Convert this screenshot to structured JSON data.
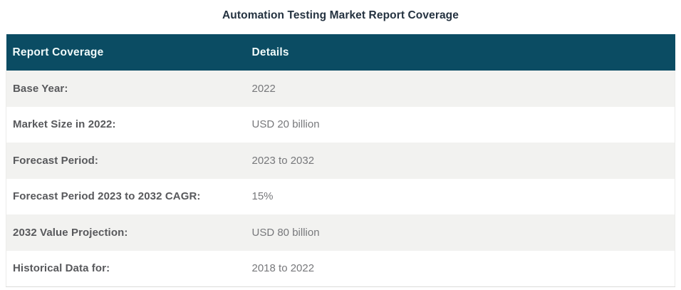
{
  "page": {
    "title": "Automation Testing Market Report Coverage"
  },
  "table": {
    "columns": [
      {
        "label": "Report Coverage"
      },
      {
        "label": "Details"
      }
    ],
    "rows": [
      {
        "label": "Base Year:",
        "value": "2022"
      },
      {
        "label": "Market Size in 2022:",
        "value": "USD 20 billion"
      },
      {
        "label": "Forecast Period:",
        "value": "2023 to 2032"
      },
      {
        "label": "Forecast Period 2023 to 2032 CAGR:",
        "value": "15%"
      },
      {
        "label": "2032 Value Projection:",
        "value": "USD 80 billion"
      },
      {
        "label": "Historical Data for:",
        "value": "2018 to 2022"
      }
    ],
    "colors": {
      "header_bg": "#0b4c63",
      "header_text": "#f0fafa",
      "row_alt_bg": "#f2f2f0",
      "row_bg": "#ffffff",
      "label_text": "#58595c",
      "value_text": "#77787b",
      "title_text": "#243240",
      "bottom_border": "#dcdcda"
    }
  }
}
